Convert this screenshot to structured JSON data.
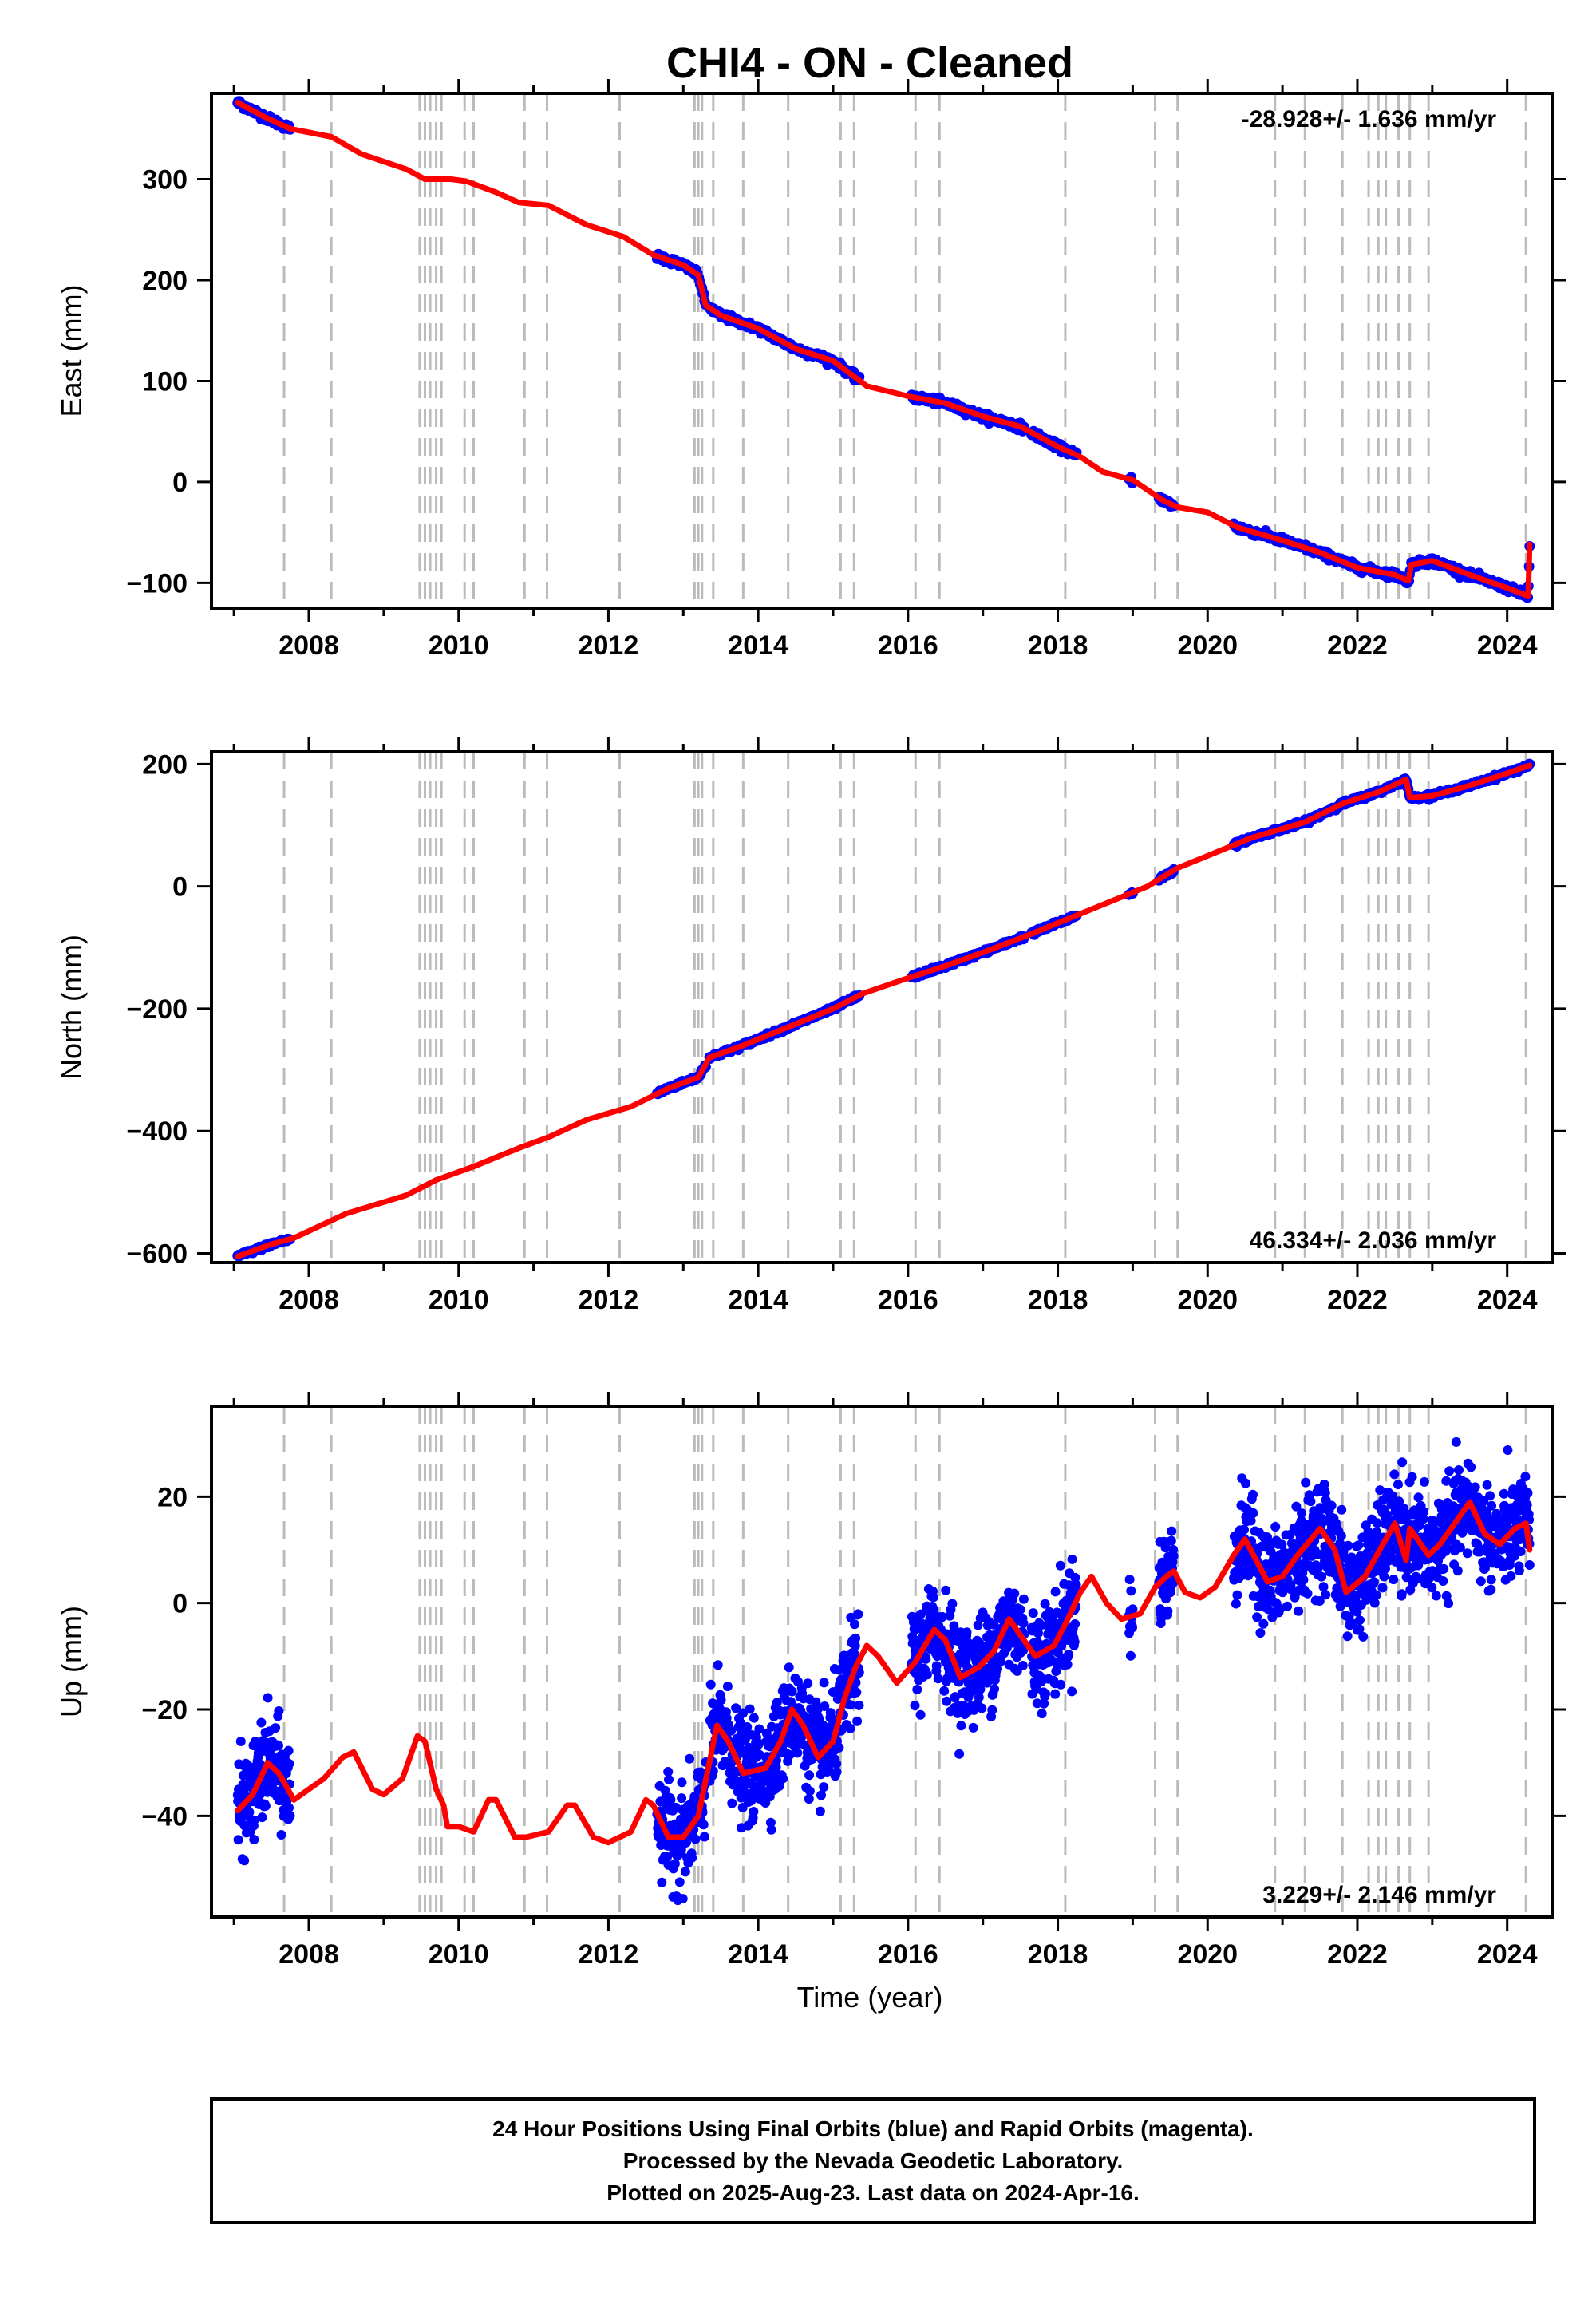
{
  "title": "CHI4  - ON - Cleaned",
  "xlabel": "Time (year)",
  "footer": {
    "line1": "24 Hour Positions Using Final Orbits (blue) and Rapid Orbits (magenta).",
    "line2": "Processed by the Nevada Geodetic Laboratory.",
    "line3": "Plotted on 2025-Aug-23. Last data on 2024-Apr-16."
  },
  "colors": {
    "data_points": "#0000ff",
    "model_line": "#ff0000",
    "event_lines": "#bbbbbb",
    "axes": "#000000"
  },
  "event_lines_years": [
    2007.67,
    2008.3,
    2009.48,
    2009.55,
    2009.62,
    2009.7,
    2009.77,
    2010.08,
    2010.2,
    2010.88,
    2011.18,
    2012.15,
    2013.15,
    2013.2,
    2013.25,
    2013.4,
    2013.8,
    2014.4,
    2015.1,
    2015.28,
    2016.1,
    2016.42,
    2018.1,
    2019.3,
    2019.6,
    2020.9,
    2021.3,
    2021.8,
    2022.15,
    2022.28,
    2022.38,
    2022.55,
    2022.7,
    2022.95,
    2024.25
  ],
  "chart_data": [
    {
      "type": "scatter",
      "id": "east",
      "ylabel": "East (mm)",
      "rate_label": "-28.928+/- 1.636 mm/yr",
      "xlim": [
        2006.7,
        2024.6
      ],
      "ylim": [
        -125,
        385
      ],
      "xticks": [
        2008,
        2010,
        2012,
        2014,
        2016,
        2018,
        2020,
        2022,
        2024
      ],
      "yticks": [
        -100,
        0,
        100,
        200,
        300
      ],
      "ytick_labels": [
        "−100",
        "0",
        "100",
        "200",
        "300"
      ],
      "data_segments": [
        [
          2007.05,
          2007.75
        ],
        [
          2012.65,
          2013.3
        ],
        [
          2013.35,
          2015.35
        ],
        [
          2016.05,
          2016.5
        ],
        [
          2016.5,
          2017.55
        ],
        [
          2017.65,
          2018.25
        ],
        [
          2018.95,
          2019.0
        ],
        [
          2019.35,
          2019.55
        ],
        [
          2020.35,
          2024.3
        ]
      ],
      "model": [
        [
          2007.05,
          376
        ],
        [
          2007.4,
          362
        ],
        [
          2007.75,
          350
        ],
        [
          2008.3,
          342
        ],
        [
          2008.7,
          325
        ],
        [
          2009.3,
          310
        ],
        [
          2009.55,
          300
        ],
        [
          2009.9,
          300
        ],
        [
          2010.1,
          298
        ],
        [
          2010.5,
          287
        ],
        [
          2010.8,
          277
        ],
        [
          2011.2,
          274
        ],
        [
          2011.7,
          255
        ],
        [
          2012.2,
          243
        ],
        [
          2012.6,
          225
        ],
        [
          2013.0,
          215
        ],
        [
          2013.2,
          205
        ],
        [
          2013.3,
          175
        ],
        [
          2013.5,
          165
        ],
        [
          2014.0,
          152
        ],
        [
          2014.5,
          132
        ],
        [
          2015.0,
          120
        ],
        [
          2015.45,
          95
        ],
        [
          2016.0,
          85
        ],
        [
          2016.5,
          78
        ],
        [
          2017.0,
          65
        ],
        [
          2017.5,
          55
        ],
        [
          2018.0,
          35
        ],
        [
          2018.3,
          25
        ],
        [
          2018.6,
          10
        ],
        [
          2019.0,
          2
        ],
        [
          2019.4,
          -18
        ],
        [
          2019.6,
          -25
        ],
        [
          2020.0,
          -30
        ],
        [
          2020.4,
          -45
        ],
        [
          2021.0,
          -58
        ],
        [
          2021.5,
          -70
        ],
        [
          2022.0,
          -85
        ],
        [
          2022.5,
          -92
        ],
        [
          2022.68,
          -98
        ],
        [
          2022.72,
          -82
        ],
        [
          2023.0,
          -78
        ],
        [
          2023.5,
          -92
        ],
        [
          2024.0,
          -105
        ],
        [
          2024.28,
          -113
        ],
        [
          2024.3,
          -62
        ]
      ]
    },
    {
      "type": "scatter",
      "id": "north",
      "ylabel": "North (mm)",
      "rate_label": "46.334+/- 2.036 mm/yr",
      "xlim": [
        2006.7,
        2024.6
      ],
      "ylim": [
        -615,
        220
      ],
      "xticks": [
        2008,
        2010,
        2012,
        2014,
        2016,
        2018,
        2020,
        2022,
        2024
      ],
      "yticks": [
        -600,
        -400,
        -200,
        0,
        200
      ],
      "ytick_labels": [
        "−600",
        "−400",
        "−200",
        "0",
        "200"
      ],
      "data_segments": [
        [
          2007.05,
          2007.75
        ],
        [
          2012.65,
          2013.3
        ],
        [
          2013.35,
          2015.35
        ],
        [
          2016.05,
          2016.5
        ],
        [
          2016.5,
          2017.55
        ],
        [
          2017.65,
          2018.25
        ],
        [
          2018.95,
          2019.0
        ],
        [
          2019.35,
          2019.55
        ],
        [
          2020.35,
          2024.3
        ]
      ],
      "model": [
        [
          2007.05,
          -605
        ],
        [
          2007.5,
          -585
        ],
        [
          2007.8,
          -575
        ],
        [
          2008.5,
          -535
        ],
        [
          2009.3,
          -505
        ],
        [
          2009.7,
          -480
        ],
        [
          2010.2,
          -458
        ],
        [
          2010.8,
          -428
        ],
        [
          2011.2,
          -410
        ],
        [
          2011.7,
          -382
        ],
        [
          2012.3,
          -360
        ],
        [
          2012.8,
          -330
        ],
        [
          2013.2,
          -312
        ],
        [
          2013.35,
          -280
        ],
        [
          2013.8,
          -260
        ],
        [
          2014.4,
          -230
        ],
        [
          2015.0,
          -200
        ],
        [
          2015.4,
          -175
        ],
        [
          2016.0,
          -150
        ],
        [
          2016.5,
          -130
        ],
        [
          2017.0,
          -108
        ],
        [
          2017.6,
          -80
        ],
        [
          2018.2,
          -50
        ],
        [
          2018.7,
          -25
        ],
        [
          2019.2,
          0
        ],
        [
          2019.6,
          30
        ],
        [
          2020.1,
          55
        ],
        [
          2020.6,
          80
        ],
        [
          2021.3,
          105
        ],
        [
          2021.8,
          135
        ],
        [
          2022.3,
          155
        ],
        [
          2022.65,
          175
        ],
        [
          2022.7,
          145
        ],
        [
          2023.0,
          148
        ],
        [
          2023.5,
          165
        ],
        [
          2024.0,
          185
        ],
        [
          2024.3,
          198
        ]
      ]
    },
    {
      "type": "scatter",
      "id": "up",
      "ylabel": "Up (mm)",
      "rate_label": "3.229+/- 2.146 mm/yr",
      "xlim": [
        2006.7,
        2024.6
      ],
      "ylim": [
        -59,
        37
      ],
      "xticks": [
        2008,
        2010,
        2012,
        2014,
        2016,
        2018,
        2020,
        2022,
        2024
      ],
      "yticks": [
        -40,
        -20,
        0,
        20
      ],
      "ytick_labels": [
        "−40",
        "−20",
        "0",
        "20"
      ],
      "data_segments": [
        [
          2007.05,
          2007.75
        ],
        [
          2012.65,
          2013.3
        ],
        [
          2013.35,
          2015.35
        ],
        [
          2016.05,
          2016.5
        ],
        [
          2016.5,
          2017.55
        ],
        [
          2017.65,
          2018.25
        ],
        [
          2018.95,
          2019.0
        ],
        [
          2019.35,
          2019.55
        ],
        [
          2020.35,
          2024.3
        ]
      ],
      "seasonal_amplitude": 6,
      "noise_sd": 4.5,
      "model": [
        [
          2007.05,
          -39
        ],
        [
          2007.25,
          -36
        ],
        [
          2007.45,
          -30
        ],
        [
          2007.6,
          -32
        ],
        [
          2007.8,
          -37
        ],
        [
          2008.0,
          -35
        ],
        [
          2008.2,
          -33
        ],
        [
          2008.45,
          -29
        ],
        [
          2008.6,
          -28
        ],
        [
          2008.85,
          -35
        ],
        [
          2009.0,
          -36
        ],
        [
          2009.25,
          -33
        ],
        [
          2009.45,
          -25
        ],
        [
          2009.55,
          -26
        ],
        [
          2009.7,
          -35
        ],
        [
          2009.8,
          -38
        ],
        [
          2009.85,
          -42
        ],
        [
          2010.0,
          -42
        ],
        [
          2010.2,
          -43
        ],
        [
          2010.4,
          -37
        ],
        [
          2010.5,
          -37
        ],
        [
          2010.75,
          -44
        ],
        [
          2010.9,
          -44
        ],
        [
          2011.2,
          -43
        ],
        [
          2011.45,
          -38
        ],
        [
          2011.55,
          -38
        ],
        [
          2011.8,
          -44
        ],
        [
          2012.0,
          -45
        ],
        [
          2012.3,
          -43
        ],
        [
          2012.5,
          -37
        ],
        [
          2012.6,
          -38
        ],
        [
          2012.8,
          -44
        ],
        [
          2013.0,
          -44
        ],
        [
          2013.2,
          -40
        ],
        [
          2013.45,
          -23
        ],
        [
          2013.6,
          -26
        ],
        [
          2013.8,
          -32
        ],
        [
          2014.1,
          -31
        ],
        [
          2014.3,
          -26
        ],
        [
          2014.45,
          -20
        ],
        [
          2014.6,
          -23
        ],
        [
          2014.8,
          -29
        ],
        [
          2015.0,
          -26
        ],
        [
          2015.15,
          -18
        ],
        [
          2015.3,
          -12
        ],
        [
          2015.45,
          -8
        ],
        [
          2015.6,
          -10
        ],
        [
          2015.85,
          -15
        ],
        [
          2016.1,
          -11
        ],
        [
          2016.35,
          -5
        ],
        [
          2016.5,
          -7
        ],
        [
          2016.7,
          -14
        ],
        [
          2016.95,
          -12
        ],
        [
          2017.15,
          -9
        ],
        [
          2017.35,
          -3
        ],
        [
          2017.5,
          -6
        ],
        [
          2017.7,
          -10
        ],
        [
          2017.95,
          -8
        ],
        [
          2018.1,
          -4
        ],
        [
          2018.3,
          2
        ],
        [
          2018.45,
          5
        ],
        [
          2018.65,
          0
        ],
        [
          2018.85,
          -3
        ],
        [
          2019.1,
          -2
        ],
        [
          2019.3,
          3
        ],
        [
          2019.45,
          5
        ],
        [
          2019.55,
          6
        ],
        [
          2019.7,
          2
        ],
        [
          2019.9,
          1
        ],
        [
          2020.1,
          3
        ],
        [
          2020.35,
          9
        ],
        [
          2020.5,
          12
        ],
        [
          2020.8,
          4
        ],
        [
          2021.0,
          5
        ],
        [
          2021.2,
          9
        ],
        [
          2021.5,
          14
        ],
        [
          2021.7,
          10
        ],
        [
          2021.85,
          2
        ],
        [
          2022.1,
          5
        ],
        [
          2022.3,
          10
        ],
        [
          2022.5,
          15
        ],
        [
          2022.65,
          8
        ],
        [
          2022.7,
          14
        ],
        [
          2022.95,
          9
        ],
        [
          2023.1,
          11
        ],
        [
          2023.3,
          15
        ],
        [
          2023.5,
          19
        ],
        [
          2023.7,
          13
        ],
        [
          2023.9,
          11
        ],
        [
          2024.1,
          14
        ],
        [
          2024.25,
          15
        ],
        [
          2024.3,
          10
        ]
      ]
    }
  ]
}
